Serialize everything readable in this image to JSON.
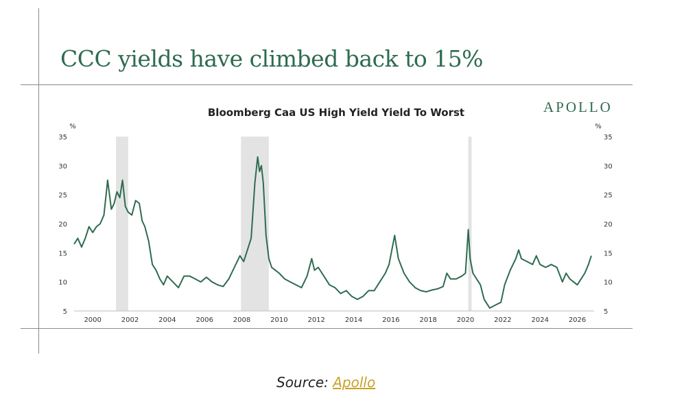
{
  "headline": "CCC yields have climbed back to 15%",
  "brand": "APOLLO",
  "source": {
    "prefix": "Source: ",
    "link_text": "Apollo"
  },
  "chart_data": {
    "type": "line",
    "title": "Bloomberg Caa US High Yield Yield To Worst",
    "ylabel_left": "%",
    "ylabel_right": "%",
    "ylim": [
      5,
      35
    ],
    "y_ticks": [
      5,
      10,
      15,
      20,
      25,
      30,
      35
    ],
    "xlim": [
      1999.0,
      2026.9
    ],
    "x_ticks": [
      2000,
      2002,
      2004,
      2006,
      2008,
      2010,
      2012,
      2014,
      2016,
      2018,
      2020,
      2022,
      2024,
      2026
    ],
    "grid": false,
    "line_color": "#2e6b4f",
    "shaded_periods": [
      [
        2001.25,
        2001.9
      ],
      [
        2007.95,
        2009.45
      ],
      [
        2020.15,
        2020.33
      ]
    ],
    "series": [
      {
        "x": [
          1999.0,
          1999.2,
          1999.4,
          1999.6,
          1999.8,
          2000.0,
          2000.2,
          2000.4,
          2000.6,
          2000.8,
          2001.0,
          2001.15,
          2001.3,
          2001.45,
          2001.6,
          2001.75,
          2001.9,
          2002.1,
          2002.3,
          2002.5,
          2002.65,
          2002.8,
          2003.0,
          2003.2,
          2003.4,
          2003.6,
          2003.8,
          2004.0,
          2004.3,
          2004.6,
          2004.9,
          2005.2,
          2005.5,
          2005.8,
          2006.1,
          2006.4,
          2006.7,
          2007.0,
          2007.3,
          2007.6,
          2007.9,
          2008.1,
          2008.3,
          2008.5,
          2008.7,
          2008.85,
          2008.95,
          2009.05,
          2009.15,
          2009.3,
          2009.45,
          2009.6,
          2009.8,
          2010.0,
          2010.3,
          2010.6,
          2010.9,
          2011.2,
          2011.5,
          2011.75,
          2011.9,
          2012.1,
          2012.4,
          2012.7,
          2013.0,
          2013.3,
          2013.6,
          2013.9,
          2014.2,
          2014.5,
          2014.8,
          2015.1,
          2015.4,
          2015.7,
          2015.9,
          2016.05,
          2016.2,
          2016.4,
          2016.7,
          2017.0,
          2017.3,
          2017.6,
          2017.9,
          2018.2,
          2018.5,
          2018.8,
          2019.0,
          2019.2,
          2019.5,
          2019.8,
          2020.0,
          2020.15,
          2020.25,
          2020.4,
          2020.6,
          2020.8,
          2021.0,
          2021.3,
          2021.6,
          2021.9,
          2022.1,
          2022.4,
          2022.7,
          2022.85,
          2023.0,
          2023.3,
          2023.6,
          2023.8,
          2024.0,
          2024.3,
          2024.6,
          2024.9,
          2025.2,
          2025.4,
          2025.6,
          2025.8,
          2026.0,
          2026.2,
          2026.4,
          2026.6,
          2026.75
        ],
        "values": [
          16.5,
          17.5,
          16.0,
          17.5,
          19.5,
          18.5,
          19.5,
          20.0,
          21.5,
          27.5,
          22.5,
          23.5,
          25.5,
          24.5,
          27.5,
          23.0,
          22.0,
          21.5,
          24.0,
          23.5,
          20.5,
          19.5,
          17.0,
          13.0,
          12.0,
          10.5,
          9.5,
          11.0,
          10.0,
          9.0,
          11.0,
          11.0,
          10.5,
          10.0,
          10.8,
          10.0,
          9.5,
          9.2,
          10.5,
          12.5,
          14.5,
          13.5,
          15.5,
          17.5,
          27.0,
          31.5,
          29.0,
          30.0,
          27.0,
          18.0,
          14.0,
          12.5,
          12.0,
          11.5,
          10.5,
          10.0,
          9.5,
          9.0,
          11.0,
          14.0,
          12.0,
          12.5,
          11.0,
          9.5,
          9.0,
          8.0,
          8.5,
          7.5,
          7.0,
          7.5,
          8.5,
          8.5,
          10.0,
          11.5,
          13.0,
          15.5,
          18.0,
          14.0,
          11.5,
          10.0,
          9.0,
          8.5,
          8.3,
          8.6,
          8.8,
          9.2,
          11.5,
          10.5,
          10.5,
          11.0,
          11.5,
          19.0,
          14.0,
          11.5,
          10.5,
          9.5,
          7.0,
          5.5,
          6.0,
          6.5,
          9.5,
          12.0,
          14.0,
          15.5,
          14.0,
          13.5,
          13.0,
          14.5,
          13.0,
          12.5,
          13.0,
          12.5,
          10.0,
          11.5,
          10.5,
          10.0,
          9.5,
          10.5,
          11.5,
          13.0,
          14.5
        ]
      }
    ]
  }
}
